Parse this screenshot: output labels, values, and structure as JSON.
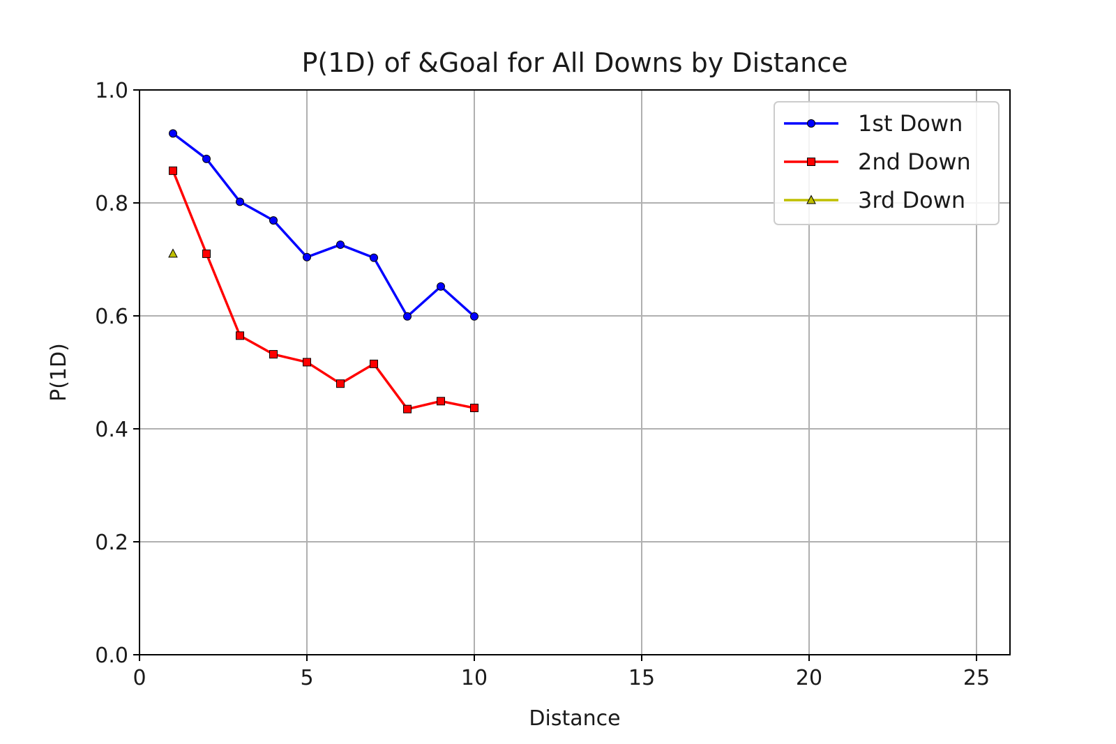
{
  "chart_data": {
    "type": "line",
    "title": "P(1D) of &Goal for All Downs by Distance",
    "xlabel": "Distance",
    "ylabel": "P(1D)",
    "xlim": [
      0,
      26
    ],
    "ylim": [
      0.0,
      1.0
    ],
    "x_ticks": [
      0,
      5,
      10,
      15,
      20,
      25
    ],
    "x_tick_labels": [
      "0",
      "5",
      "10",
      "15",
      "20",
      "25"
    ],
    "y_ticks": [
      0.0,
      0.2,
      0.4,
      0.6,
      0.8,
      1.0
    ],
    "y_tick_labels": [
      "0.0",
      "0.2",
      "0.4",
      "0.6",
      "0.8",
      "1.0"
    ],
    "grid": true,
    "legend_position": "top-right",
    "series": [
      {
        "name": "1st Down",
        "color": "#0000ff",
        "marker": "circle",
        "x": [
          1,
          2,
          3,
          4,
          5,
          6,
          7,
          8,
          9,
          10
        ],
        "y": [
          0.923,
          0.878,
          0.802,
          0.769,
          0.704,
          0.726,
          0.703,
          0.599,
          0.652,
          0.599
        ]
      },
      {
        "name": "2nd Down",
        "color": "#ff0000",
        "marker": "square",
        "x": [
          1,
          2,
          3,
          4,
          5,
          6,
          7,
          8,
          9,
          10
        ],
        "y": [
          0.857,
          0.71,
          0.565,
          0.532,
          0.518,
          0.48,
          0.515,
          0.435,
          0.449,
          0.437
        ]
      },
      {
        "name": "3rd Down",
        "color": "#bfbf00",
        "marker": "triangle",
        "x": [
          1
        ],
        "y": [
          0.71
        ]
      }
    ]
  }
}
